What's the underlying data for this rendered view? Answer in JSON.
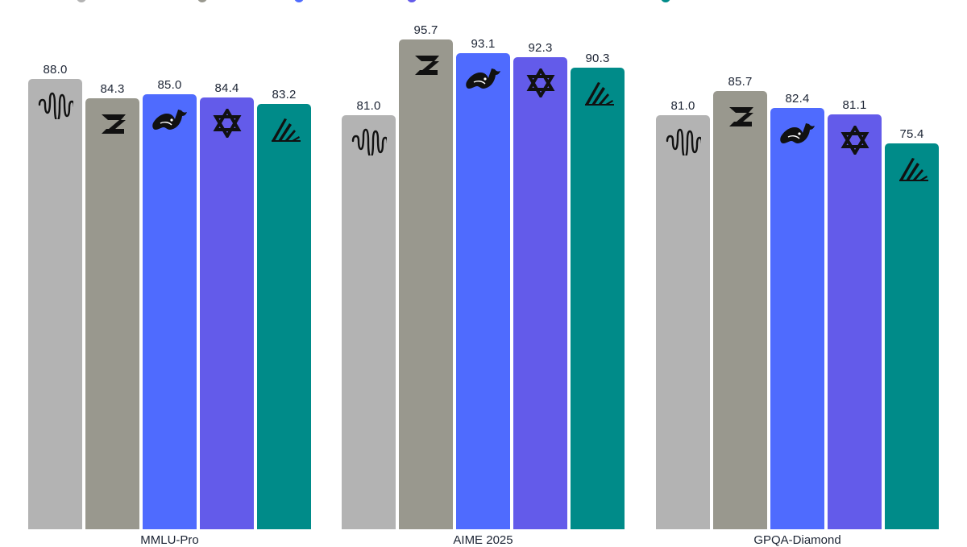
{
  "chart_data": {
    "type": "bar",
    "title": "",
    "xlabel": "",
    "ylabel": "",
    "ylim": [
      0,
      100
    ],
    "grid": false,
    "legend_position": "top (cropped)",
    "categories": [
      "MMLU-Pro",
      "AIME 2025",
      "GPQA-Diamond"
    ],
    "series": [
      {
        "name": "Model A (waveform logo)",
        "icon": "waveform-icon",
        "color": "#b3b3b3",
        "values": [
          88.0,
          81.0,
          81.0
        ]
      },
      {
        "name": "Model B (Z logo)",
        "icon": "z-logo-icon",
        "color": "#99988e",
        "values": [
          84.3,
          95.7,
          85.7
        ]
      },
      {
        "name": "Model C (whale logo)",
        "icon": "whale-icon",
        "color": "#4f6bfe",
        "values": [
          85.0,
          93.1,
          82.4
        ]
      },
      {
        "name": "Model D (hexagram logo)",
        "icon": "hexagram-icon",
        "color": "#635bea",
        "values": [
          84.4,
          92.3,
          81.1
        ]
      },
      {
        "name": "Model E (rays logo)",
        "icon": "rays-icon",
        "color": "#008b89",
        "values": [
          83.2,
          90.3,
          75.4
        ]
      }
    ],
    "value_labels": true
  },
  "legend": {
    "dot_colors": [
      "#b3b3b3",
      "#99988e",
      "#4f6bfe",
      "#635bea",
      "#008b89"
    ],
    "dot_x": [
      95,
      245,
      365,
      505,
      820
    ]
  },
  "groups": [
    {
      "label": "MMLU-Pro",
      "x": 35
    },
    {
      "label": "AIME 2025",
      "x": 424
    },
    {
      "label": "GPQA-Diamond",
      "x": 814
    }
  ],
  "labels": {
    "g0": [
      "88.0",
      "84.3",
      "85.0",
      "84.4",
      "83.2"
    ],
    "g1": [
      "81.0",
      "95.7",
      "93.1",
      "92.3",
      "90.3"
    ],
    "g2": [
      "81.0",
      "85.7",
      "82.4",
      "81.1",
      "75.4"
    ]
  }
}
